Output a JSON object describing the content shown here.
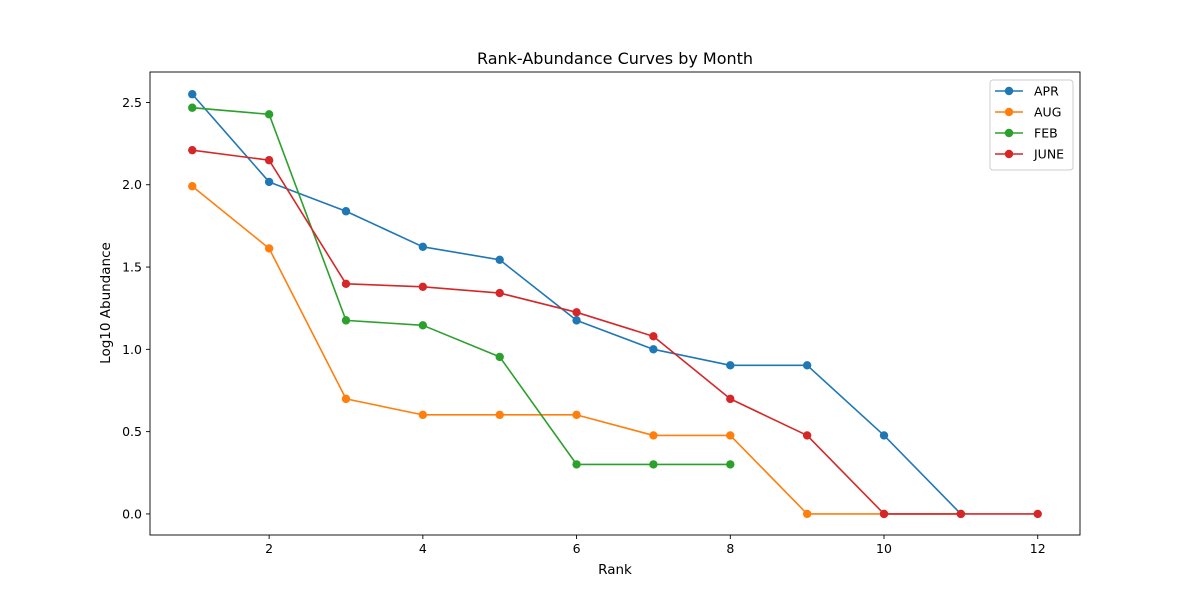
{
  "chart_data": {
    "type": "line",
    "title": "Rank-Abundance Curves by Month",
    "xlabel": "Rank",
    "ylabel": "Log10 Abundance",
    "xlim": [
      0.45,
      12.55
    ],
    "ylim": [
      -0.128,
      2.685
    ],
    "xticks": [
      2,
      4,
      6,
      8,
      10,
      12
    ],
    "xtick_labels": [
      "2",
      "4",
      "6",
      "8",
      "10",
      "12"
    ],
    "yticks": [
      0.0,
      0.5,
      1.0,
      1.5,
      2.0,
      2.5
    ],
    "ytick_labels": [
      "0.0",
      "0.5",
      "1.0",
      "1.5",
      "2.0",
      "2.5"
    ],
    "grid": false,
    "legend_position": "top-right",
    "markers": true,
    "series": [
      {
        "name": "APR",
        "color": "#1f77b4",
        "x": [
          1,
          2,
          3,
          4,
          5,
          6,
          7,
          8,
          9,
          10,
          11
        ],
        "y": [
          2.55,
          2.017,
          1.839,
          1.623,
          1.544,
          1.176,
          1.0,
          0.903,
          0.903,
          0.477,
          0.0
        ]
      },
      {
        "name": "AUG",
        "color": "#ff7f0e",
        "x": [
          1,
          2,
          3,
          4,
          5,
          6,
          7,
          8,
          9,
          10,
          11
        ],
        "y": [
          1.991,
          1.613,
          0.699,
          0.602,
          0.602,
          0.602,
          0.477,
          0.477,
          0.0,
          0.0,
          0.0
        ]
      },
      {
        "name": "FEB",
        "color": "#2ca02c",
        "x": [
          1,
          2,
          3,
          4,
          5,
          6,
          7,
          8
        ],
        "y": [
          2.468,
          2.428,
          1.176,
          1.146,
          0.954,
          0.301,
          0.301,
          0.301
        ]
      },
      {
        "name": "JUNE",
        "color": "#d62728",
        "x": [
          1,
          2,
          3,
          4,
          5,
          6,
          7,
          8,
          9,
          10,
          11,
          12
        ],
        "y": [
          2.21,
          2.149,
          1.398,
          1.38,
          1.342,
          1.225,
          1.079,
          0.699,
          0.477,
          0.0,
          0.0,
          0.0
        ]
      }
    ]
  }
}
